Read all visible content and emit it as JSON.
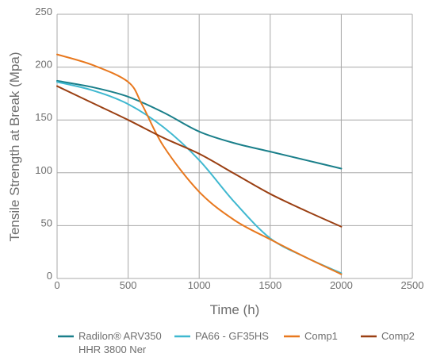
{
  "chart_data": {
    "type": "line",
    "title": "",
    "xlabel": "Time (h)",
    "ylabel": "Tensile Strength at Break (Mpa)",
    "xlim": [
      0,
      2500
    ],
    "ylim": [
      0,
      250
    ],
    "xticks": [
      0,
      500,
      1000,
      1500,
      2000,
      2500
    ],
    "yticks": [
      0,
      50,
      100,
      150,
      200,
      250
    ],
    "grid": true,
    "legend_position": "bottom",
    "series": [
      {
        "name": "Radilon® ARV350 HHR 3800 Ner",
        "legend_lines": [
          "Radilon® ARV350",
          "HHR 3800 Ner"
        ],
        "color": "#1a7f8a",
        "x": [
          0,
          250,
          500,
          750,
          1000,
          1250,
          1500,
          1750,
          2000
        ],
        "y": [
          187,
          181,
          172,
          157,
          139,
          128,
          120,
          112,
          104
        ]
      },
      {
        "name": "PA66 - GF35HS",
        "legend_lines": [
          "PA66 - GF35HS"
        ],
        "color": "#3fb8d0",
        "x": [
          0,
          250,
          500,
          750,
          1000,
          1250,
          1500,
          1750,
          2000
        ],
        "y": [
          186,
          178,
          165,
          143,
          112,
          72,
          38,
          20,
          5
        ]
      },
      {
        "name": "Comp1",
        "legend_lines": [
          "Comp1"
        ],
        "color": "#e8781e",
        "x": [
          0,
          250,
          500,
          600,
          750,
          1000,
          1250,
          1500,
          1750,
          2000
        ],
        "y": [
          212,
          202,
          186,
          164,
          125,
          82,
          55,
          37,
          20,
          4
        ]
      },
      {
        "name": "Comp2",
        "legend_lines": [
          "Comp2"
        ],
        "color": "#9a3f12",
        "x": [
          0,
          250,
          500,
          750,
          1000,
          1250,
          1500,
          1750,
          2000
        ],
        "y": [
          182,
          166,
          150,
          133,
          118,
          99,
          80,
          64,
          49
        ]
      }
    ]
  }
}
